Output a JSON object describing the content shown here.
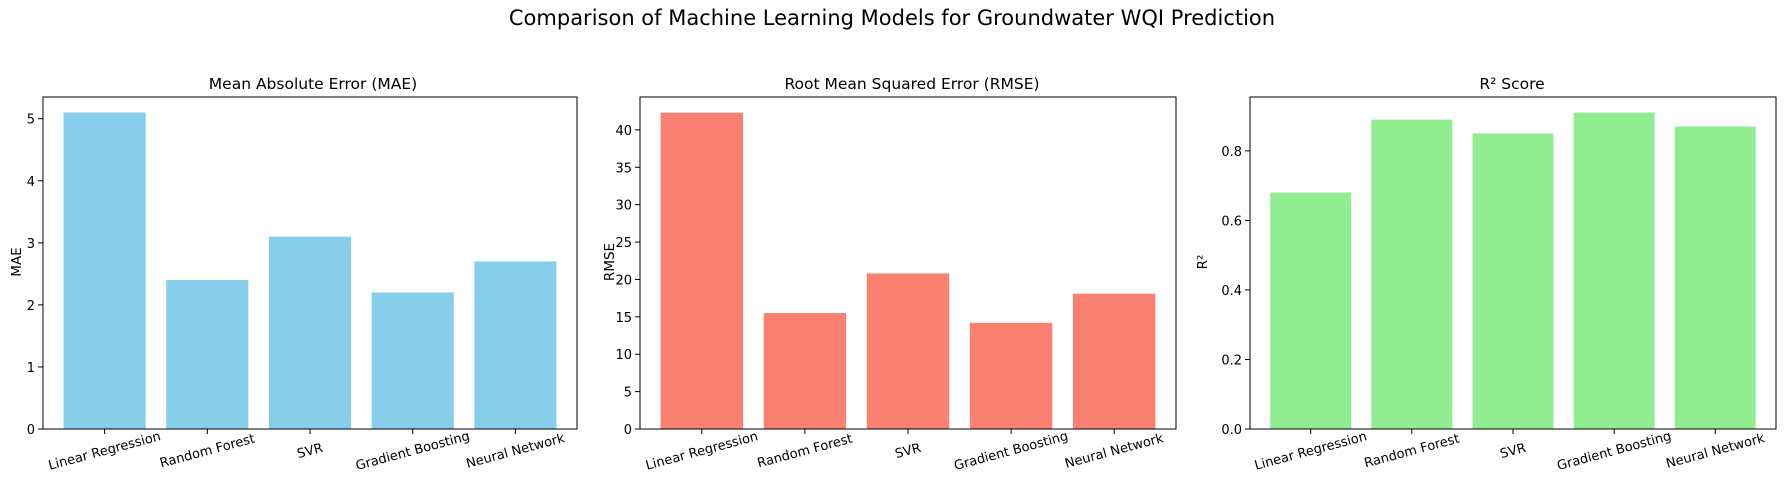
{
  "figure": {
    "title": "Comparison of Machine Learning Models for Groundwater WQI Prediction"
  },
  "chart_data": [
    {
      "type": "bar",
      "title": "Mean Absolute Error (MAE)",
      "xlabel": "",
      "ylabel": "MAE",
      "categories": [
        "Linear Regression",
        "Random Forest",
        "SVR",
        "Gradient Boosting",
        "Neural Network"
      ],
      "values": [
        5.1,
        2.4,
        3.1,
        2.2,
        2.7
      ],
      "ylim": [
        0,
        5.35
      ],
      "yticks": [
        0,
        1,
        2,
        3,
        4,
        5
      ],
      "yticklabels": [
        "0",
        "1",
        "2",
        "3",
        "4",
        "5"
      ],
      "color": "#87CEEB",
      "grid": false,
      "legend": false
    },
    {
      "type": "bar",
      "title": "Root Mean Squared Error (RMSE)",
      "xlabel": "",
      "ylabel": "RMSE",
      "categories": [
        "Linear Regression",
        "Random Forest",
        "SVR",
        "Gradient Boosting",
        "Neural Network"
      ],
      "values": [
        42.3,
        15.5,
        20.8,
        14.2,
        18.1
      ],
      "ylim": [
        0,
        44.4
      ],
      "yticks": [
        0,
        5,
        10,
        15,
        20,
        25,
        30,
        35,
        40
      ],
      "yticklabels": [
        "0",
        "5",
        "10",
        "15",
        "20",
        "25",
        "30",
        "35",
        "40"
      ],
      "color": "#FA8072",
      "grid": false,
      "legend": false
    },
    {
      "type": "bar",
      "title": "R² Score",
      "xlabel": "",
      "ylabel": "R²",
      "categories": [
        "Linear Regression",
        "Random Forest",
        "SVR",
        "Gradient Boosting",
        "Neural Network"
      ],
      "values": [
        0.68,
        0.89,
        0.85,
        0.91,
        0.87
      ],
      "ylim": [
        0,
        0.955
      ],
      "yticks": [
        0,
        0.2,
        0.4,
        0.6,
        0.8
      ],
      "yticklabels": [
        "0.0",
        "0.2",
        "0.4",
        "0.6",
        "0.8"
      ],
      "color": "#90EE90",
      "grid": false,
      "legend": false
    }
  ]
}
